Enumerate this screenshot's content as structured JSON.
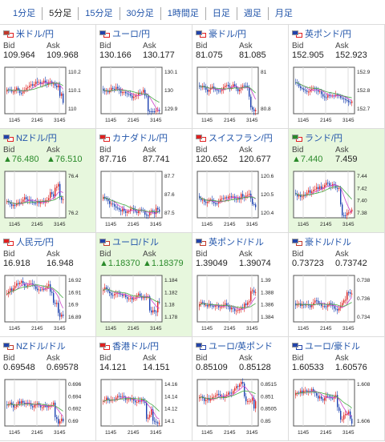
{
  "tabs": [
    "1分足",
    "5分足",
    "15分足",
    "30分足",
    "1時間足",
    "日足",
    "週足",
    "月足"
  ],
  "active_tab": 1,
  "bid_label": "Bid",
  "ask_label": "Ask",
  "pairs": [
    {
      "name": "米ドル/円",
      "bid": "109.964",
      "ask": "109.968",
      "up": false,
      "hl": false,
      "flags": [
        "#c0392b",
        "#e02020"
      ],
      "yt": [
        "110.2",
        "110.1",
        "110"
      ],
      "xt": [
        "1145",
        "2145",
        "3145"
      ]
    },
    {
      "name": "ユーロ/円",
      "bid": "130.166",
      "ask": "130.177",
      "up": false,
      "hl": false,
      "flags": [
        "#2244aa",
        "#e02020"
      ],
      "yt": [
        "130.1",
        "130",
        "129.9"
      ],
      "xt": [
        "1145",
        "2145",
        "3145"
      ]
    },
    {
      "name": "豪ドル/円",
      "bid": "81.075",
      "ask": "81.085",
      "up": false,
      "hl": false,
      "flags": [
        "#2244aa",
        "#e02020"
      ],
      "yt": [
        "81",
        "80.8"
      ],
      "xt": [
        "1145",
        "2145",
        "3145"
      ]
    },
    {
      "name": "英ポンド/円",
      "bid": "152.905",
      "ask": "152.923",
      "up": false,
      "hl": false,
      "flags": [
        "#2244aa",
        "#e02020"
      ],
      "yt": [
        "152.9",
        "152.8",
        "152.7"
      ],
      "xt": [
        "1145",
        "2145",
        "3145"
      ]
    },
    {
      "name": "NZドル/円",
      "bid": "▲76.480",
      "ask": "▲76.510",
      "up": true,
      "hl": true,
      "flags": [
        "#2244aa",
        "#e02020"
      ],
      "yt": [
        "76.4",
        "76.2"
      ],
      "xt": [
        "1145",
        "2145",
        "3145"
      ]
    },
    {
      "name": "カナダドル/円",
      "bid": "87.716",
      "ask": "87.741",
      "up": false,
      "hl": false,
      "flags": [
        "#e02020",
        "#e02020"
      ],
      "yt": [
        "87.7",
        "87.6",
        "87.5"
      ],
      "xt": [
        "1145",
        "2145",
        "3145"
      ]
    },
    {
      "name": "スイスフラン/円",
      "bid": "120.652",
      "ask": "120.677",
      "up": false,
      "hl": false,
      "flags": [
        "#e02020",
        "#e02020"
      ],
      "yt": [
        "120.6",
        "120.5",
        "120.4"
      ],
      "xt": [
        "1145",
        "2145",
        "3145"
      ]
    },
    {
      "name": "ランド/円",
      "bid": "▲7.440",
      "ask": "7.459",
      "up": true,
      "hl": true,
      "flags": [
        "#2a8a2a",
        "#e02020"
      ],
      "yt": [
        "7.44",
        "7.42",
        "7.40",
        "7.38"
      ],
      "xt": [
        "1145",
        "2145",
        "3145"
      ]
    },
    {
      "name": "人民元/円",
      "bid": "16.918",
      "ask": "16.948",
      "up": false,
      "hl": false,
      "flags": [
        "#e02020",
        "#e02020"
      ],
      "yt": [
        "16.92",
        "16.91",
        "16.9",
        "16.89"
      ],
      "xt": [
        "1145",
        "2145",
        "3145"
      ]
    },
    {
      "name": "ユーロ/ドル",
      "bid": "▲1.18370",
      "ask": "▲1.18379",
      "up": true,
      "hl": true,
      "flags": [
        "#2244aa",
        "#c0392b"
      ],
      "yt": [
        "1.184",
        "1.182",
        "1.18",
        "1.178"
      ],
      "xt": [
        "1145",
        "2145",
        "3145"
      ]
    },
    {
      "name": "英ポンド/ドル",
      "bid": "1.39049",
      "ask": "1.39074",
      "up": false,
      "hl": false,
      "flags": [
        "#2244aa",
        "#c0392b"
      ],
      "yt": [
        "1.39",
        "1.388",
        "1.386",
        "1.384"
      ],
      "xt": [
        "1145",
        "2145",
        "3145"
      ]
    },
    {
      "name": "豪ドル/ドル",
      "bid": "0.73723",
      "ask": "0.73742",
      "up": false,
      "hl": false,
      "flags": [
        "#2244aa",
        "#c0392b"
      ],
      "yt": [
        "0.738",
        "0.736",
        "0.734"
      ],
      "xt": [
        "1145",
        "2145",
        "3145"
      ]
    },
    {
      "name": "NZドル/ドル",
      "bid": "0.69548",
      "ask": "0.69578",
      "up": false,
      "hl": false,
      "flags": [
        "#2244aa",
        "#c0392b"
      ],
      "yt": [
        "0.696",
        "0.694",
        "0.692",
        "0.69"
      ],
      "xt": [
        "1145",
        "2145",
        "3145"
      ]
    },
    {
      "name": "香港ドル/円",
      "bid": "14.121",
      "ask": "14.151",
      "up": false,
      "hl": false,
      "flags": [
        "#e02020",
        "#e02020"
      ],
      "yt": [
        "14.16",
        "14.14",
        "14.12",
        "14.1"
      ],
      "xt": [
        "1145",
        "2145",
        "3145"
      ]
    },
    {
      "name": "ユーロ/英ポンド",
      "bid": "0.85109",
      "ask": "0.85128",
      "up": false,
      "hl": false,
      "flags": [
        "#2244aa",
        "#2244aa"
      ],
      "yt": [
        "0.8515",
        "0.851",
        "0.8505",
        "0.85"
      ],
      "xt": [
        "1145",
        "2145",
        "3145"
      ]
    },
    {
      "name": "ユーロ/豪ドル",
      "bid": "1.60533",
      "ask": "1.60576",
      "up": false,
      "hl": false,
      "flags": [
        "#2244aa",
        "#2244aa"
      ],
      "yt": [
        "1.608",
        "1.606"
      ],
      "xt": [
        "1145",
        "2145",
        "3145"
      ]
    }
  ]
}
